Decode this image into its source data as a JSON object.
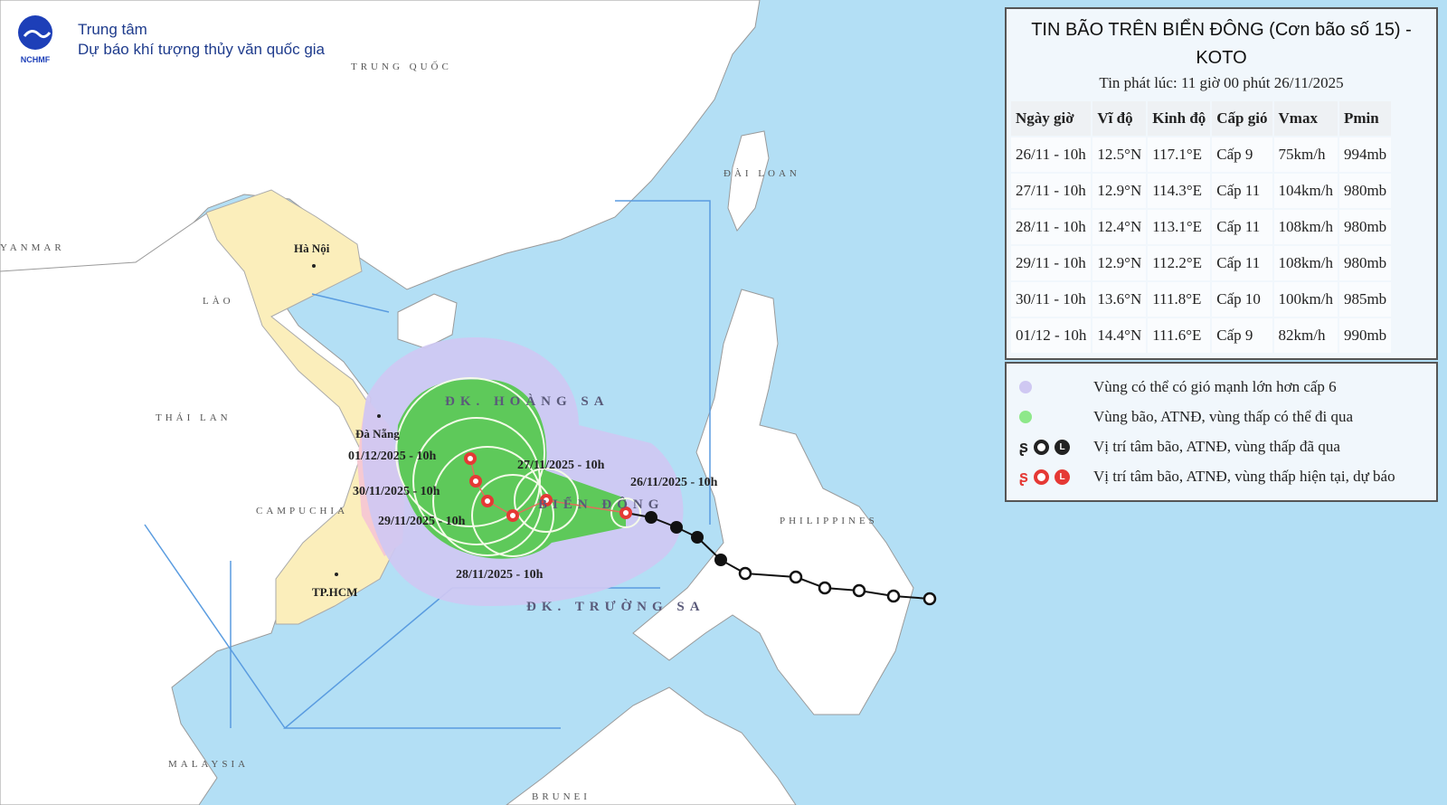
{
  "header": {
    "org_line1": "Trung tâm",
    "org_line2": "Dự báo khí tượng thủy văn quốc gia",
    "logo_text": "NCHMF"
  },
  "bulletin": {
    "title_line1": "TIN BÃO TRÊN BIỂN ĐÔNG (Cơn bão số 15) -",
    "title_line2": "KOTO",
    "issued": "Tin phát lúc: 11 giờ 00 phút 26/11/2025",
    "columns": [
      "Ngày giờ",
      "Vĩ độ",
      "Kinh độ",
      "Cấp gió",
      "Vmax",
      "Pmin"
    ],
    "rows": [
      [
        "26/11 - 10h",
        "12.5°N",
        "117.1°E",
        "Cấp 9",
        "75km/h",
        "994mb"
      ],
      [
        "27/11 - 10h",
        "12.9°N",
        "114.3°E",
        "Cấp 11",
        "104km/h",
        "980mb"
      ],
      [
        "28/11 - 10h",
        "12.4°N",
        "113.1°E",
        "Cấp 11",
        "108km/h",
        "980mb"
      ],
      [
        "29/11 - 10h",
        "12.9°N",
        "112.2°E",
        "Cấp 11",
        "108km/h",
        "980mb"
      ],
      [
        "30/11 - 10h",
        "13.6°N",
        "111.8°E",
        "Cấp 10",
        "100km/h",
        "985mb"
      ],
      [
        "01/12 - 10h",
        "14.4°N",
        "111.6°E",
        "Cấp 9",
        "82km/h",
        "990mb"
      ]
    ]
  },
  "legend": [
    {
      "text": "Vùng có thể có gió mạnh lớn hơn cấp 6",
      "color": "#cfc8f2"
    },
    {
      "text": "Vùng bão, ATNĐ, vùng thấp có thể đi qua",
      "color": "#8ee88a"
    },
    {
      "text": "Vị trí tâm bão, ATNĐ, vùng thấp đã qua",
      "color": "#222222",
      "icon_l": "L"
    },
    {
      "text": "Vị trí tâm bão, ATNĐ, vùng thấp hiện tại, dự báo",
      "color": "#e53935",
      "icon_l": "L"
    }
  ],
  "map": {
    "countries": {
      "china": "TRUNG QUỐC",
      "taiwan": "ĐÀI LOAN",
      "myanmar": "YANMAR",
      "laos": "LÀO",
      "thailand": "THÁI LAN",
      "cambodia": "CAMPUCHIA",
      "philippines": "PHILIPPINES",
      "malaysia": "MALAYSIA",
      "brunei": "BRUNEI"
    },
    "cities": {
      "hanoi": "Hà Nội",
      "danang": "Đà Nẵng",
      "hcm": "TP.HCM"
    },
    "seas": {
      "hoangsa": "ĐK. HOÀNG SA",
      "biendong": "BIỂN ĐÔNG",
      "truongsa": "ĐK. TRƯỜNG SA"
    },
    "forecast_labels": [
      "26/11/2025 - 10h",
      "27/11/2025 - 10h",
      "28/11/2025 - 10h",
      "29/11/2025 - 10h",
      "30/11/2025 - 10h",
      "01/12/2025 - 10h"
    ],
    "colors": {
      "sea": "#b3dff5",
      "land": "#ffffff",
      "vietnam": "#fbeebb",
      "danger_coast": "#f6c9d2",
      "strong_wind": "#cfc8f2",
      "storm_zone": "#5ec95a",
      "past": "#111111",
      "forecast": "#e53935"
    }
  }
}
